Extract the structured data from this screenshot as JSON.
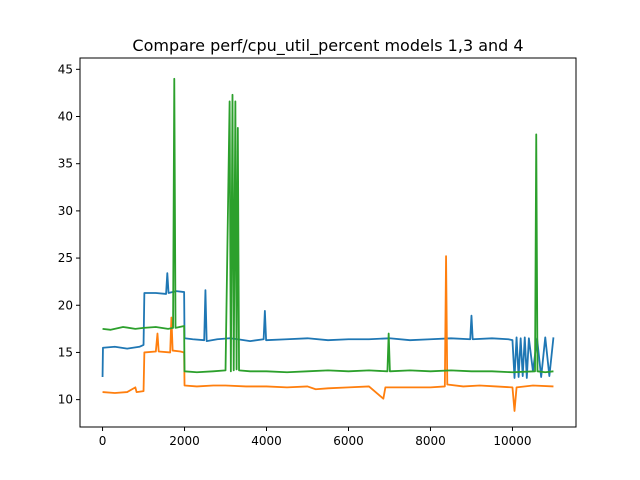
{
  "chart_data": {
    "type": "line",
    "title": "Compare perf/cpu_util_percent models 1,3 and 4",
    "xlabel": "",
    "ylabel": "",
    "xlim": [
      -550,
      11550
    ],
    "ylim": [
      7.1,
      46.2
    ],
    "x_ticks": [
      0,
      2000,
      4000,
      6000,
      8000,
      10000
    ],
    "y_ticks": [
      10,
      15,
      20,
      25,
      30,
      35,
      40,
      45
    ],
    "grid": false,
    "legend": "none",
    "series": [
      {
        "color": "#1f77b4",
        "points": [
          [
            0,
            12.4
          ],
          [
            10,
            15.5
          ],
          [
            300,
            15.6
          ],
          [
            600,
            15.4
          ],
          [
            900,
            15.6
          ],
          [
            1000,
            15.8
          ],
          [
            1020,
            21.3
          ],
          [
            1300,
            21.3
          ],
          [
            1550,
            21.2
          ],
          [
            1580,
            23.4
          ],
          [
            1610,
            21.3
          ],
          [
            1800,
            21.5
          ],
          [
            1990,
            21.4
          ],
          [
            2000,
            16.5
          ],
          [
            2200,
            16.4
          ],
          [
            2480,
            16.3
          ],
          [
            2510,
            21.6
          ],
          [
            2540,
            16.2
          ],
          [
            2800,
            16.4
          ],
          [
            3100,
            16.5
          ],
          [
            3300,
            16.4
          ],
          [
            3600,
            16.2
          ],
          [
            3930,
            16.4
          ],
          [
            3960,
            19.4
          ],
          [
            3990,
            16.3
          ],
          [
            4500,
            16.4
          ],
          [
            5000,
            16.5
          ],
          [
            5500,
            16.3
          ],
          [
            6000,
            16.4
          ],
          [
            6500,
            16.4
          ],
          [
            7000,
            16.5
          ],
          [
            7500,
            16.3
          ],
          [
            8000,
            16.4
          ],
          [
            8500,
            16.5
          ],
          [
            8970,
            16.4
          ],
          [
            9000,
            18.9
          ],
          [
            9030,
            16.4
          ],
          [
            9500,
            16.5
          ],
          [
            9900,
            16.4
          ],
          [
            10000,
            16.3
          ],
          [
            10050,
            12.3
          ],
          [
            10100,
            16.6
          ],
          [
            10150,
            12.4
          ],
          [
            10200,
            16.5
          ],
          [
            10250,
            12.5
          ],
          [
            10300,
            16.6
          ],
          [
            10350,
            12.3
          ],
          [
            10400,
            16.5
          ],
          [
            10500,
            13.0
          ],
          [
            10600,
            16.5
          ],
          [
            10700,
            12.4
          ],
          [
            10800,
            16.6
          ],
          [
            10900,
            12.5
          ],
          [
            11000,
            16.6
          ]
        ]
      },
      {
        "color": "#ff7f0e",
        "points": [
          [
            0,
            10.8
          ],
          [
            300,
            10.7
          ],
          [
            600,
            10.8
          ],
          [
            800,
            11.3
          ],
          [
            830,
            10.8
          ],
          [
            1000,
            10.9
          ],
          [
            1020,
            15.0
          ],
          [
            1300,
            15.1
          ],
          [
            1340,
            17.0
          ],
          [
            1370,
            15.1
          ],
          [
            1650,
            15.0
          ],
          [
            1680,
            18.7
          ],
          [
            1710,
            15.2
          ],
          [
            1900,
            15.1
          ],
          [
            1990,
            15.0
          ],
          [
            2000,
            11.5
          ],
          [
            2300,
            11.4
          ],
          [
            2700,
            11.5
          ],
          [
            3000,
            11.5
          ],
          [
            3500,
            11.4
          ],
          [
            4000,
            11.4
          ],
          [
            4500,
            11.3
          ],
          [
            5000,
            11.4
          ],
          [
            5200,
            11.1
          ],
          [
            5500,
            11.2
          ],
          [
            6000,
            11.3
          ],
          [
            6500,
            11.4
          ],
          [
            6850,
            10.1
          ],
          [
            6900,
            11.3
          ],
          [
            7500,
            11.3
          ],
          [
            8000,
            11.3
          ],
          [
            8350,
            11.4
          ],
          [
            8380,
            25.2
          ],
          [
            8410,
            11.6
          ],
          [
            8800,
            11.4
          ],
          [
            9200,
            11.5
          ],
          [
            9600,
            11.4
          ],
          [
            10000,
            11.3
          ],
          [
            10050,
            8.8
          ],
          [
            10100,
            11.3
          ],
          [
            10500,
            11.5
          ],
          [
            11000,
            11.4
          ]
        ]
      },
      {
        "color": "#2ca02c",
        "points": [
          [
            0,
            17.5
          ],
          [
            200,
            17.4
          ],
          [
            500,
            17.7
          ],
          [
            800,
            17.5
          ],
          [
            1000,
            17.6
          ],
          [
            1300,
            17.7
          ],
          [
            1600,
            17.5
          ],
          [
            1720,
            17.6
          ],
          [
            1750,
            44.0
          ],
          [
            1780,
            17.6
          ],
          [
            1990,
            17.8
          ],
          [
            2000,
            13.0
          ],
          [
            2300,
            12.9
          ],
          [
            2700,
            13.0
          ],
          [
            3000,
            13.1
          ],
          [
            3100,
            41.6
          ],
          [
            3130,
            13.0
          ],
          [
            3170,
            42.3
          ],
          [
            3200,
            13.1
          ],
          [
            3240,
            41.6
          ],
          [
            3270,
            13.2
          ],
          [
            3300,
            38.8
          ],
          [
            3330,
            13.1
          ],
          [
            3600,
            13.0
          ],
          [
            4000,
            13.0
          ],
          [
            4500,
            12.9
          ],
          [
            5000,
            13.0
          ],
          [
            5500,
            13.1
          ],
          [
            6000,
            13.0
          ],
          [
            6500,
            13.1
          ],
          [
            6950,
            13.0
          ],
          [
            6980,
            17.0
          ],
          [
            7010,
            13.0
          ],
          [
            7500,
            13.1
          ],
          [
            8000,
            13.0
          ],
          [
            8500,
            13.1
          ],
          [
            9000,
            13.0
          ],
          [
            9500,
            13.0
          ],
          [
            10000,
            12.9
          ],
          [
            10550,
            13.0
          ],
          [
            10580,
            38.1
          ],
          [
            10610,
            13.0
          ],
          [
            10800,
            12.9
          ],
          [
            11000,
            13.0
          ]
        ]
      }
    ]
  }
}
